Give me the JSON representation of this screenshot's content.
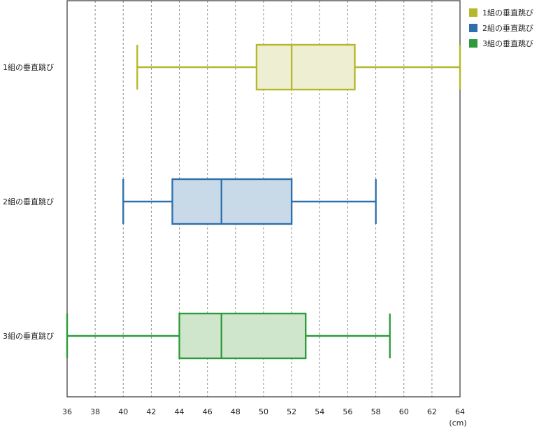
{
  "chart_data": {
    "type": "boxplot",
    "title": "",
    "xlabel": "",
    "ylabel": "",
    "x_unit": "(cm)",
    "xlim": [
      36,
      64
    ],
    "xticks": [
      36,
      38,
      40,
      42,
      44,
      46,
      48,
      50,
      52,
      54,
      56,
      58,
      60,
      62,
      64
    ],
    "grid": true,
    "legend_position": "top-right",
    "series": [
      {
        "name": "1組の垂直跳び",
        "category": "1組の垂直跳び",
        "min": 41,
        "q1": 49.5,
        "median": 52,
        "q3": 56.5,
        "max": 64,
        "stroke": "#b5b82a",
        "fill": "#eeefd2"
      },
      {
        "name": "2組の垂直跳び",
        "category": "2組の垂直跳び",
        "min": 40,
        "q1": 43.5,
        "median": 47,
        "q3": 52,
        "max": 58,
        "stroke": "#2e70ad",
        "fill": "#c8d9e8"
      },
      {
        "name": "3組の垂直跳び",
        "category": "3組の垂直跳び",
        "min": 36,
        "q1": 44,
        "median": 47,
        "q3": 53,
        "max": 59,
        "stroke": "#2e9a3c",
        "fill": "#cfe6cc"
      }
    ]
  }
}
